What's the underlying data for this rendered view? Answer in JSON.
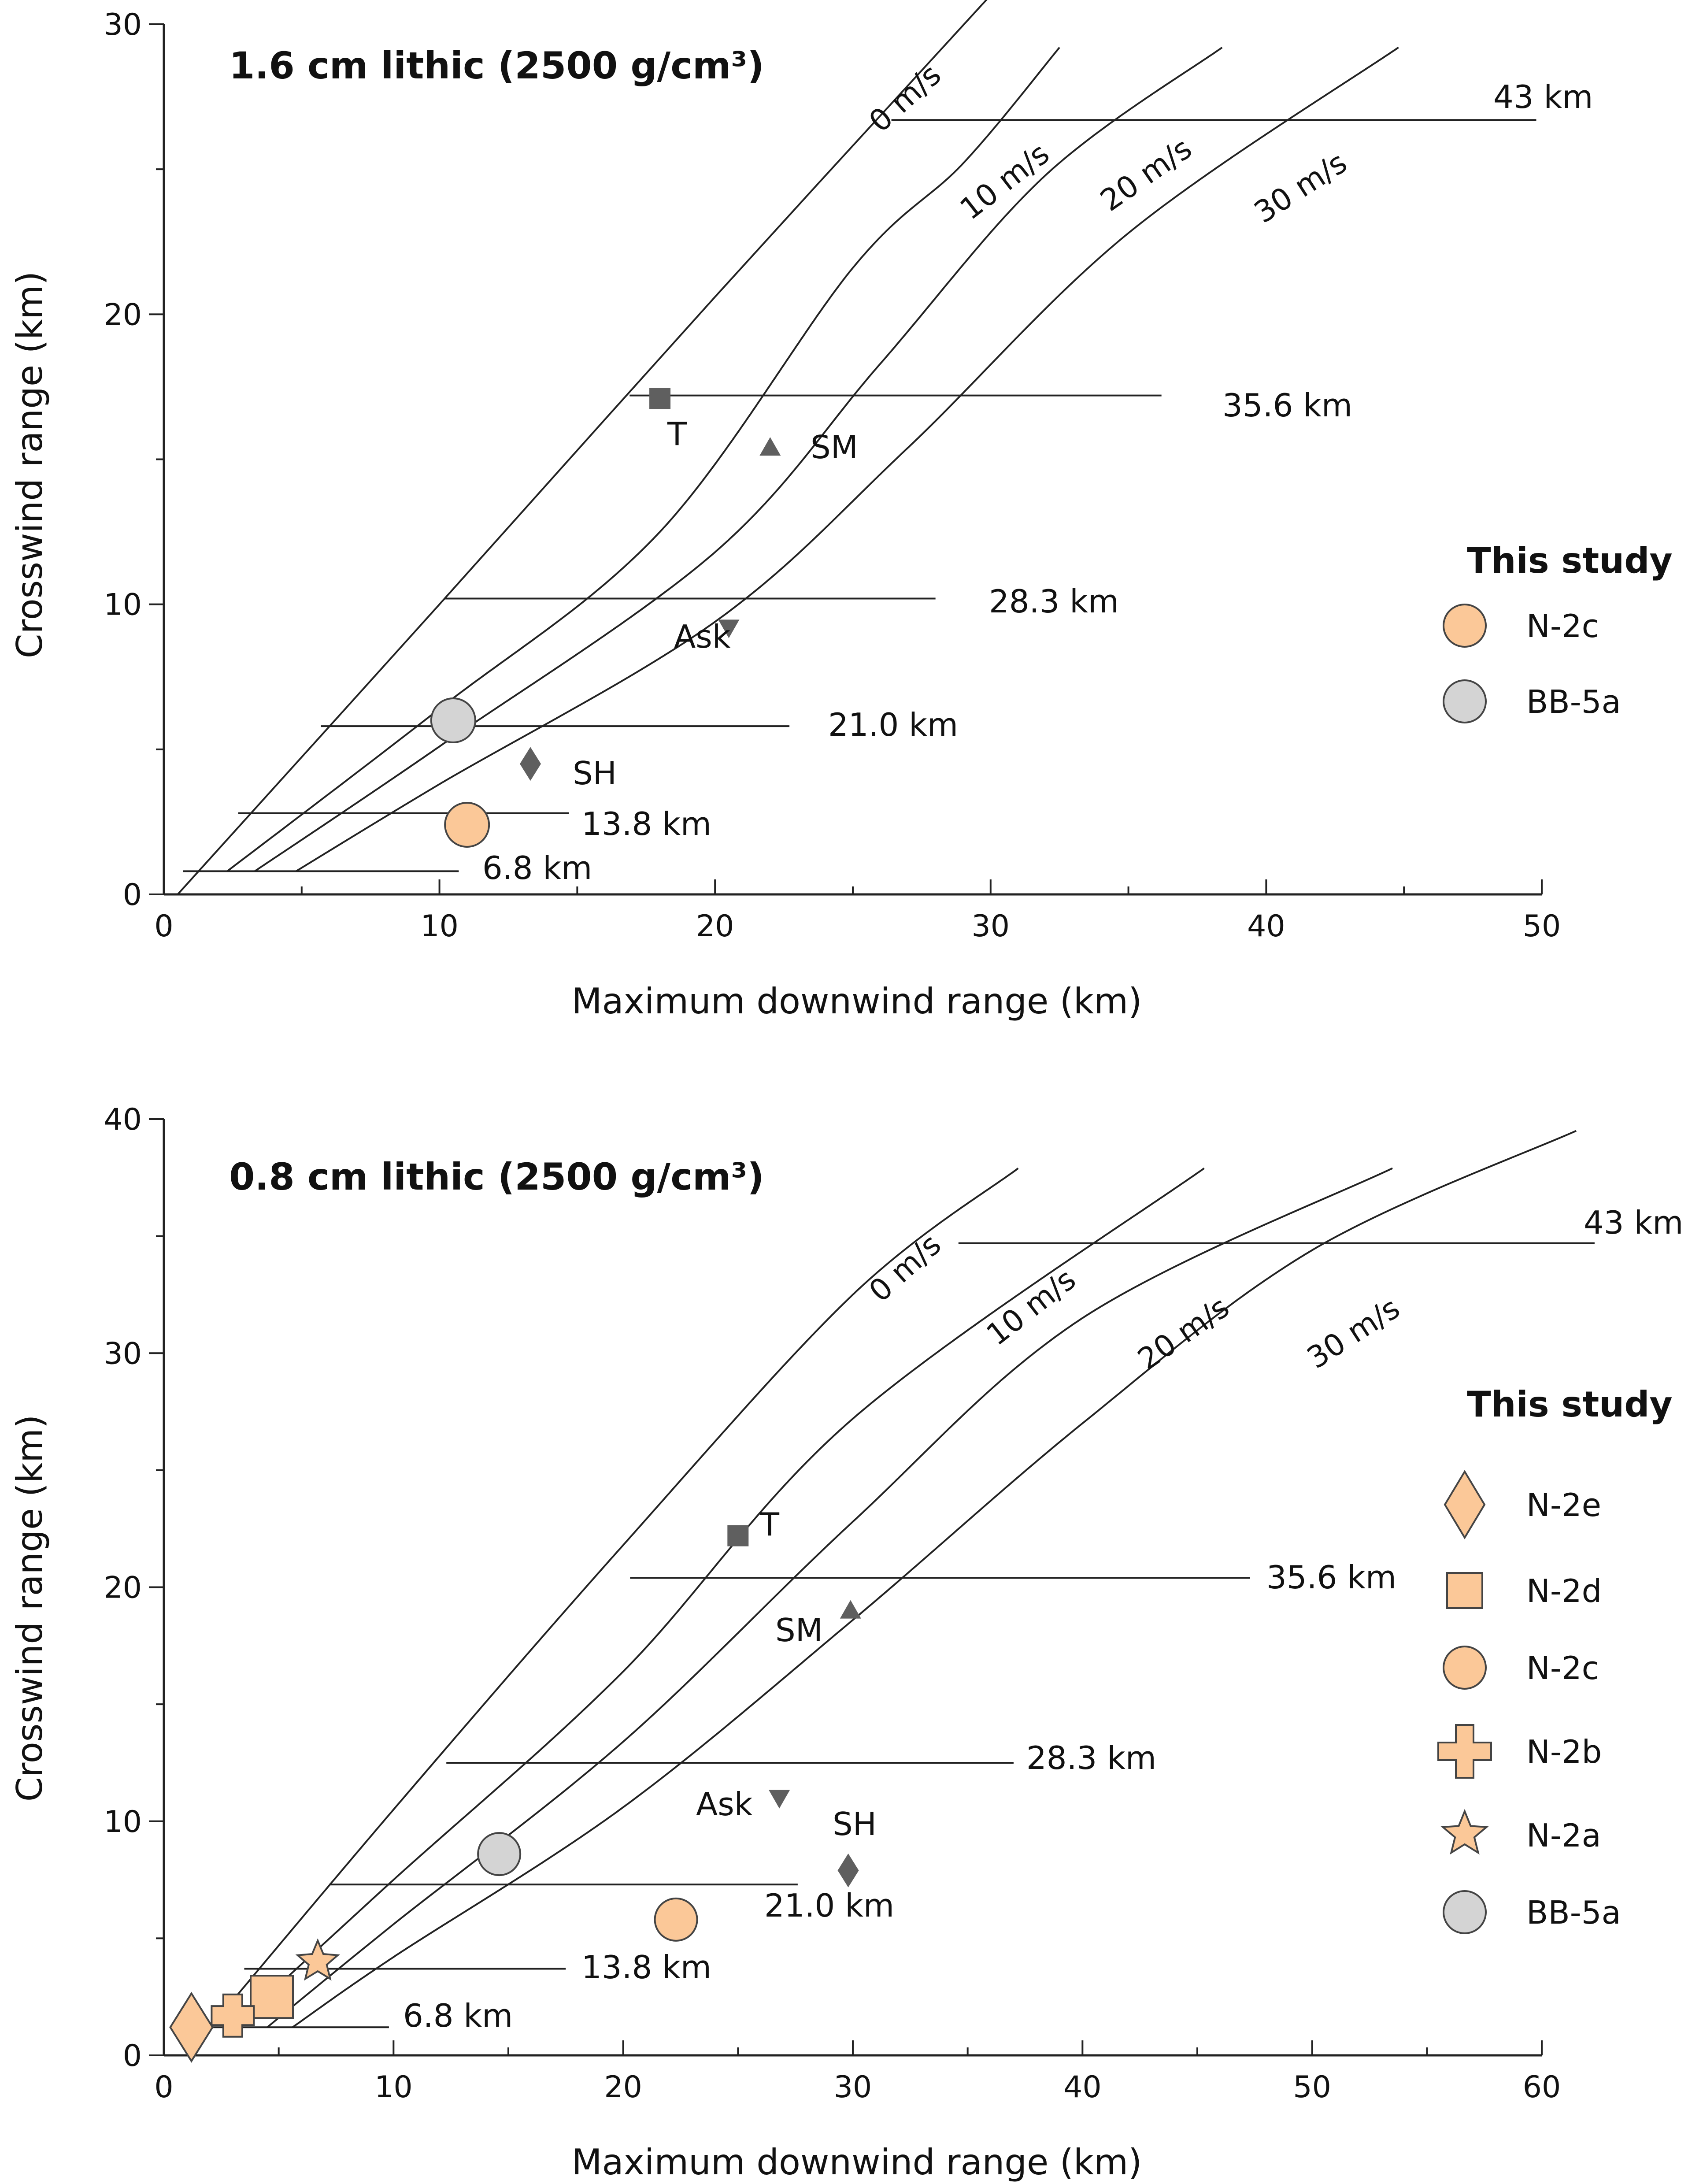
{
  "chart_data": [
    {
      "type": "line",
      "title": "1.6 cm lithic (2500 g/cm³)",
      "xlabel": "Maximum downwind range (km)",
      "ylabel": "Crosswind range (km)",
      "xlim": [
        0,
        50
      ],
      "ylim": [
        0,
        30
      ],
      "xticks": [
        0,
        10,
        20,
        30,
        40,
        50
      ],
      "yticks": [
        0,
        10,
        20,
        30
      ],
      "wind_curves": [
        {
          "name": "0 m/s",
          "points": [
            [
              0.5,
              0
            ],
            [
              10,
              10
            ],
            [
              20,
              20.6
            ],
            [
              30,
              31
            ]
          ]
        },
        {
          "name": "10 m/s",
          "points": [
            [
              2.3,
              0.8
            ],
            [
              10,
              6.4
            ],
            [
              18,
              12.5
            ],
            [
              25,
              21.6
            ],
            [
              29,
              25.2
            ],
            [
              32.5,
              29.2
            ]
          ]
        },
        {
          "name": "20 m/s",
          "points": [
            [
              3.3,
              0.8
            ],
            [
              10,
              5.1
            ],
            [
              20,
              11.8
            ],
            [
              26,
              18.3
            ],
            [
              32,
              24.8
            ],
            [
              38.4,
              29.2
            ]
          ]
        },
        {
          "name": "30 m/s",
          "points": [
            [
              4.8,
              0.8
            ],
            [
              10,
              3.8
            ],
            [
              20,
              9.4
            ],
            [
              27,
              15.4
            ],
            [
              35,
              22.8
            ],
            [
              44.8,
              29.2
            ]
          ]
        }
      ],
      "range_lines": [
        {
          "label": "6.8 km",
          "y": 0.8,
          "x_start": 0.7,
          "x_end": 10.7
        },
        {
          "label": "13.8 km",
          "y": 2.8,
          "x_start": 2.7,
          "x_end": 14.7
        },
        {
          "label": "21.0 km",
          "y": 5.8,
          "x_start": 5.7,
          "x_end": 22.7
        },
        {
          "label": "28.3 km",
          "y": 10.2,
          "x_start": 10.2,
          "x_end": 28.0
        },
        {
          "label": "35.6 km",
          "y": 17.2,
          "x_start": 16.9,
          "x_end": 36.2
        },
        {
          "label": "43 km",
          "y": 26.7,
          "x_start": 26.4,
          "x_end": 49.8
        }
      ],
      "reference_points": [
        {
          "label": "T",
          "marker": "square",
          "x": 18.0,
          "y": 17.1
        },
        {
          "label": "SM",
          "marker": "triangle-up",
          "x": 22.0,
          "y": 15.4
        },
        {
          "label": "Ask",
          "marker": "triangle-down",
          "x": 20.5,
          "y": 9.2
        },
        {
          "label": "SH",
          "marker": "diamond",
          "x": 13.3,
          "y": 4.5
        }
      ],
      "study_points": [
        {
          "label": "N-2c",
          "marker": "circle",
          "color": "#FBC898",
          "x": 11.0,
          "y": 2.4
        },
        {
          "label": "BB-5a",
          "marker": "circle",
          "color": "#D4D4D4",
          "x": 10.5,
          "y": 6.0
        }
      ],
      "legend_title": "This study",
      "legend_position": "right"
    },
    {
      "type": "line",
      "title": "0.8 cm lithic (2500 g/cm³)",
      "xlabel": "Maximum downwind range (km)",
      "ylabel": "Crosswind range (km)",
      "xlim": [
        0,
        60
      ],
      "ylim": [
        0,
        40
      ],
      "xticks": [
        0,
        10,
        20,
        30,
        40,
        50,
        60
      ],
      "yticks": [
        0,
        10,
        20,
        30,
        40
      ],
      "wind_curves": [
        {
          "name": "0 m/s",
          "points": [
            [
              1,
              0
            ],
            [
              10,
              10.5
            ],
            [
              20,
              21.8
            ],
            [
              30,
              32.5
            ],
            [
              37.2,
              37.9
            ]
          ]
        },
        {
          "name": "10 m/s",
          "points": [
            [
              3,
              1.2
            ],
            [
              10,
              7.5
            ],
            [
              20,
              16.4
            ],
            [
              30,
              27.2
            ],
            [
              45.3,
              37.9
            ]
          ]
        },
        {
          "name": "20 m/s",
          "points": [
            [
              4.5,
              1.2
            ],
            [
              10,
              5.6
            ],
            [
              20,
              13.4
            ],
            [
              30,
              22.8
            ],
            [
              40,
              31.5
            ],
            [
              53.5,
              37.9
            ]
          ]
        },
        {
          "name": "30 m/s",
          "points": [
            [
              5.6,
              1.2
            ],
            [
              10,
              4.2
            ],
            [
              20,
              10.6
            ],
            [
              30,
              18.6
            ],
            [
              40,
              27
            ],
            [
              50,
              34.4
            ],
            [
              61.5,
              39.5
            ]
          ]
        }
      ],
      "range_lines": [
        {
          "label": "6.8 km",
          "y": 1.2,
          "x_start": 1.2,
          "x_end": 9.8
        },
        {
          "label": "13.8 km",
          "y": 3.7,
          "x_start": 3.5,
          "x_end": 17.5
        },
        {
          "label": "21.0 km",
          "y": 7.3,
          "x_start": 7.2,
          "x_end": 27.6
        },
        {
          "label": "28.3 km",
          "y": 12.5,
          "x_start": 12.3,
          "x_end": 37.0
        },
        {
          "label": "35.6 km",
          "y": 20.4,
          "x_start": 20.3,
          "x_end": 47.3
        },
        {
          "label": "43 km",
          "y": 34.7,
          "x_start": 34.6,
          "x_end": 62.3
        }
      ],
      "reference_points": [
        {
          "label": "T",
          "marker": "square",
          "x": 25.0,
          "y": 22.2
        },
        {
          "label": "SM",
          "marker": "triangle-up",
          "x": 29.9,
          "y": 19.0
        },
        {
          "label": "Ask",
          "marker": "triangle-down",
          "x": 26.8,
          "y": 11.0
        },
        {
          "label": "SH",
          "marker": "diamond",
          "x": 29.8,
          "y": 7.9
        }
      ],
      "study_points": [
        {
          "label": "N-2e",
          "marker": "diamond",
          "color": "#FBC898",
          "x": 1.2,
          "y": 1.2
        },
        {
          "label": "N-2d",
          "marker": "square",
          "color": "#FBC898",
          "x": 4.7,
          "y": 2.5
        },
        {
          "label": "N-2c",
          "marker": "circle",
          "color": "#FBC898",
          "x": 22.3,
          "y": 5.8
        },
        {
          "label": "N-2b",
          "marker": "cross",
          "color": "#FBC898",
          "x": 3.0,
          "y": 1.7
        },
        {
          "label": "N-2a",
          "marker": "star",
          "color": "#FBC898",
          "x": 6.7,
          "y": 4.0
        },
        {
          "label": "BB-5a",
          "marker": "circle",
          "color": "#D4D4D4",
          "x": 14.6,
          "y": 8.6
        }
      ],
      "legend_title": "This study",
      "legend_position": "right"
    }
  ]
}
